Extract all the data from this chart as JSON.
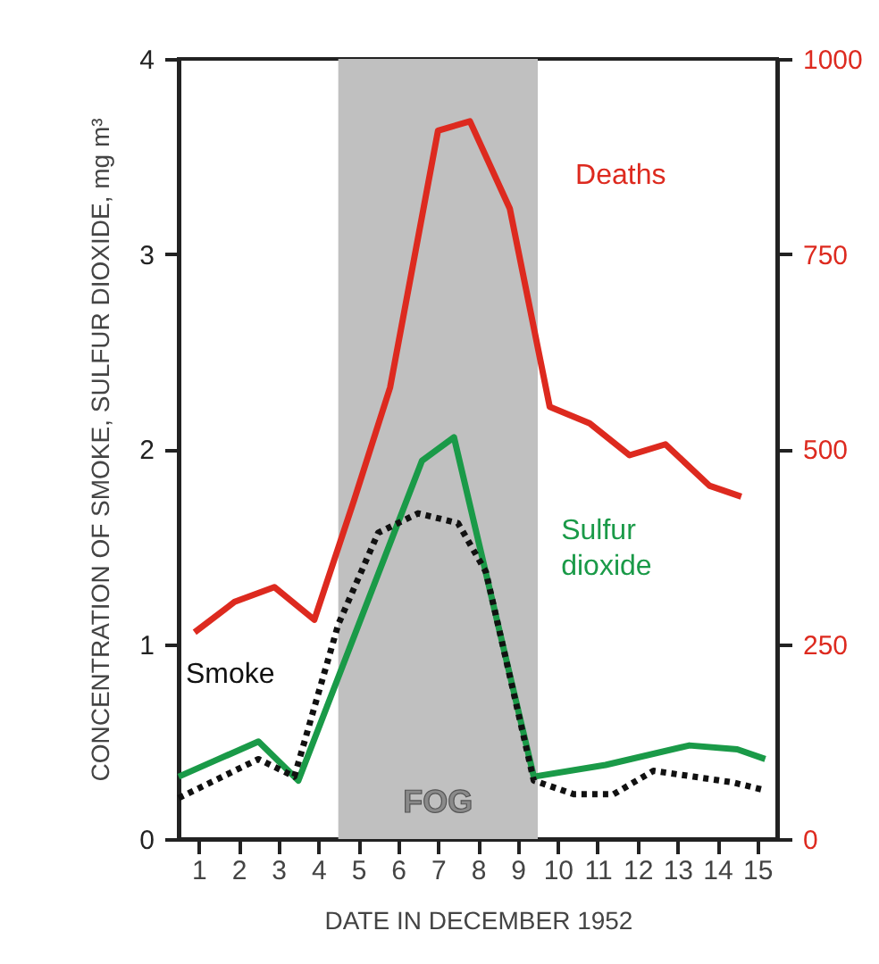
{
  "chart_data": {
    "type": "line",
    "xlabel": "DATE IN DECEMBER 1952",
    "ylabel": "CONCENTRATION OF SMOKE, SULFUR DIOXIDE,   mg m³",
    "xlim": [
      0.5,
      15.5
    ],
    "xticks": [
      1,
      2,
      3,
      4,
      5,
      6,
      7,
      8,
      9,
      10,
      11,
      12,
      13,
      14,
      15
    ],
    "ylim": [
      0,
      4
    ],
    "yticks": [
      0,
      1,
      2,
      3,
      4
    ],
    "y2lim": [
      0,
      1000
    ],
    "y2ticks": [
      0,
      250,
      500,
      750,
      1000
    ],
    "grid": false,
    "marker": "none",
    "bands": [
      {
        "axis": "x",
        "from": 4.5,
        "to": 9.5,
        "label": "FOG",
        "color": "#c0c0c0"
      }
    ],
    "series": [
      {
        "name": "Deaths",
        "color": "#dd2a1f",
        "axis": "y2",
        "line_style": "solid",
        "x": [
          0.9,
          1.9,
          2.9,
          3.9,
          4.9,
          5.8,
          7.0,
          7.8,
          8.8,
          9.8,
          10.8,
          11.8,
          12.7,
          13.8,
          14.6
        ],
        "values": [
          265,
          304,
          323,
          281,
          435,
          579,
          908,
          920,
          808,
          554,
          533,
          492,
          506,
          453,
          439
        ]
      },
      {
        "name": "Sulfur dioxide",
        "color": "#1a9a48",
        "line_style": "solid",
        "x": [
          0.5,
          1.5,
          2.5,
          3.5,
          6.6,
          7.4,
          9.4,
          11.2,
          13.3,
          14.5,
          15.2
        ],
        "values": [
          0.32,
          0.41,
          0.5,
          0.3,
          1.94,
          2.06,
          0.32,
          0.38,
          0.48,
          0.46,
          0.41
        ]
      },
      {
        "name": "Smoke",
        "color": "#111111",
        "line_style": "dotted",
        "x": [
          0.5,
          2.5,
          3.4,
          4.5,
          5.5,
          6.5,
          7.5,
          8.2,
          9.4,
          10.4,
          11.4,
          12.4,
          13.4,
          14.4,
          15.2
        ],
        "values": [
          0.21,
          0.41,
          0.32,
          1.1,
          1.57,
          1.67,
          1.62,
          1.37,
          0.3,
          0.23,
          0.23,
          0.35,
          0.32,
          0.29,
          0.25
        ]
      }
    ]
  }
}
